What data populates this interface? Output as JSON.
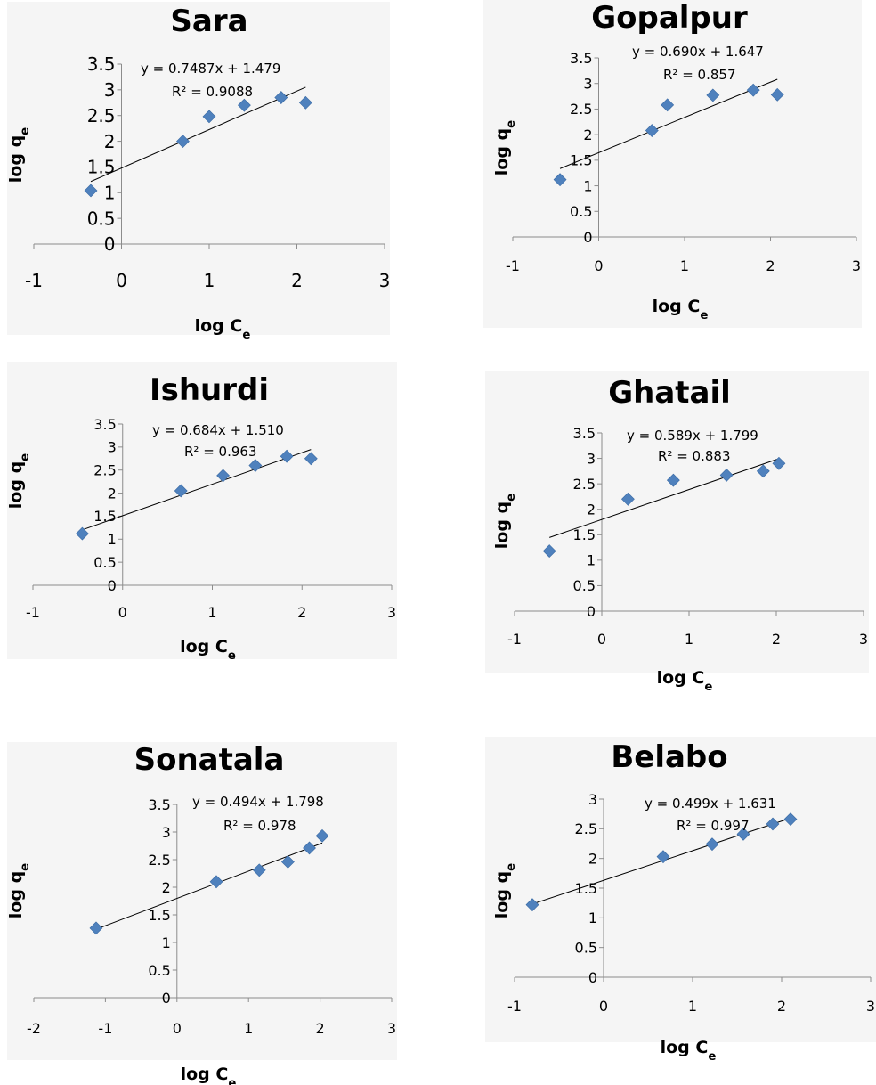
{
  "chart_data": [
    {
      "type": "scatter",
      "title": "Sara",
      "xlabel": "log C_e",
      "ylabel": "log q_e",
      "xlim": [
        -1,
        3
      ],
      "ylim": [
        0,
        3.5
      ],
      "xticks": [
        "-1",
        "0",
        "1",
        "2",
        "3"
      ],
      "yticks": [
        "0",
        "0.5",
        "1",
        "1.5",
        "2",
        "2.5",
        "3",
        "3.5"
      ],
      "x": [
        -0.35,
        0.7,
        1.0,
        1.4,
        1.82,
        2.1
      ],
      "y": [
        1.04,
        2.0,
        2.48,
        2.7,
        2.85,
        2.75
      ],
      "trendline": {
        "slope": 0.7487,
        "intercept": 1.479,
        "x_range": [
          -0.35,
          2.1
        ]
      },
      "equation": "y = 0.7487x + 1.479",
      "r2_label": "R² = 0.9088",
      "marker_color": "#4f81bd",
      "grid": false
    },
    {
      "type": "scatter",
      "title": "Gopalpur",
      "xlabel": "log C_e",
      "ylabel": "log q_e",
      "xlim": [
        -1,
        3
      ],
      "ylim": [
        0,
        3.5
      ],
      "xticks": [
        "-1",
        "0",
        "1",
        "2",
        "3"
      ],
      "yticks": [
        "0",
        "0.5",
        "1",
        "1.5",
        "2",
        "2.5",
        "3",
        "3.5"
      ],
      "x": [
        -0.45,
        0.62,
        0.8,
        1.33,
        1.8,
        2.08
      ],
      "y": [
        1.12,
        2.08,
        2.58,
        2.77,
        2.87,
        2.78
      ],
      "trendline": {
        "slope": 0.69,
        "intercept": 1.647,
        "x_range": [
          -0.45,
          2.08
        ]
      },
      "equation": "y = 0.690x + 1.647",
      "r2_label": "R² = 0.857",
      "marker_color": "#4f81bd",
      "grid": false
    },
    {
      "type": "scatter",
      "title": "Ishurdi",
      "xlabel": "log C_e",
      "ylabel": "log q_e",
      "xlim": [
        -1,
        3
      ],
      "ylim": [
        0,
        3.5
      ],
      "xticks": [
        "-1",
        "0",
        "1",
        "2",
        "3"
      ],
      "yticks": [
        "0",
        "0.5",
        "1",
        "1.5",
        "2",
        "2.5",
        "3",
        "3.5"
      ],
      "x": [
        -0.45,
        0.65,
        1.12,
        1.48,
        1.83,
        2.1
      ],
      "y": [
        1.12,
        2.05,
        2.38,
        2.6,
        2.8,
        2.75
      ],
      "trendline": {
        "slope": 0.684,
        "intercept": 1.51,
        "x_range": [
          -0.45,
          2.1
        ]
      },
      "equation": "y = 0.684x + 1.510",
      "r2_label": "R² = 0.963",
      "marker_color": "#4f81bd",
      "grid": false
    },
    {
      "type": "scatter",
      "title": "Ghatail",
      "xlabel": "log C_e",
      "ylabel": "log q_e",
      "xlim": [
        -1,
        3
      ],
      "ylim": [
        0,
        3.5
      ],
      "xticks": [
        "-1",
        "0",
        "1",
        "2",
        "3"
      ],
      "yticks": [
        "0",
        "0.5",
        "1",
        "1.5",
        "2",
        "2.5",
        "3",
        "3.5"
      ],
      "x": [
        -0.6,
        0.3,
        0.82,
        1.43,
        1.85,
        2.03
      ],
      "y": [
        1.18,
        2.2,
        2.57,
        2.67,
        2.75,
        2.9
      ],
      "trendline": {
        "slope": 0.589,
        "intercept": 1.799,
        "x_range": [
          -0.6,
          2.03
        ]
      },
      "equation": "y = 0.589x + 1.799",
      "r2_label": "R² = 0.883",
      "marker_color": "#4f81bd",
      "grid": false
    },
    {
      "type": "scatter",
      "title": "Sonatala",
      "xlabel": "log C_e",
      "ylabel": "log q_e",
      "xlim": [
        -2,
        3
      ],
      "ylim": [
        0,
        3.5
      ],
      "xticks": [
        "-2",
        "-1",
        "0",
        "1",
        "2",
        "3"
      ],
      "yticks": [
        "0",
        "0.5",
        "1",
        "1.5",
        "2",
        "2.5",
        "3",
        "3.5"
      ],
      "x": [
        -1.13,
        0.55,
        1.15,
        1.55,
        1.85,
        2.03
      ],
      "y": [
        1.26,
        2.1,
        2.31,
        2.46,
        2.71,
        2.93
      ],
      "trendline": {
        "slope": 0.494,
        "intercept": 1.798,
        "x_range": [
          -1.13,
          2.03
        ]
      },
      "equation": "y = 0.494x + 1.798",
      "r2_label": "R² = 0.978",
      "marker_color": "#4f81bd",
      "grid": false
    },
    {
      "type": "scatter",
      "title": "Belabo",
      "xlabel": "log C_e",
      "ylabel": "log q_e",
      "xlim": [
        -1,
        3
      ],
      "ylim": [
        0,
        3
      ],
      "xticks": [
        "-1",
        "0",
        "1",
        "2",
        "3"
      ],
      "yticks": [
        "0",
        "0.5",
        "1",
        "1.5",
        "2",
        "2.5",
        "3"
      ],
      "x": [
        -0.8,
        0.67,
        1.22,
        1.57,
        1.9,
        2.1
      ],
      "y": [
        1.22,
        2.03,
        2.24,
        2.41,
        2.58,
        2.66
      ],
      "trendline": {
        "slope": 0.499,
        "intercept": 1.631,
        "x_range": [
          -0.8,
          2.1
        ]
      },
      "equation": "y = 0.499x + 1.631",
      "r2_label": "R² = 0.997",
      "marker_color": "#4f81bd",
      "grid": false
    }
  ]
}
